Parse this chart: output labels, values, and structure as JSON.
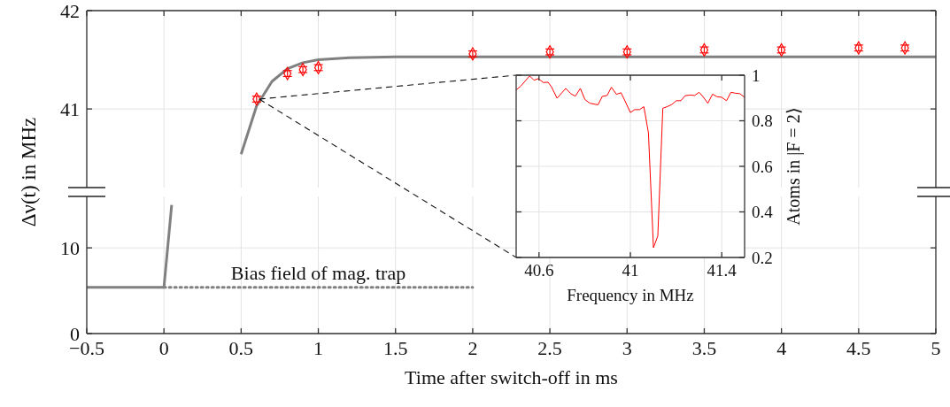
{
  "chart_data": [
    {
      "type": "line",
      "ylabel": "Δν(t) in MHz",
      "xlim": [
        -0.5,
        5
      ],
      "xticks": [
        -0.5,
        0,
        0.5,
        1,
        1.5,
        2,
        2.5,
        3,
        3.5,
        4,
        4.5,
        5
      ],
      "ylim": [
        40.2,
        42
      ],
      "yticks": [
        41,
        42
      ],
      "grid": true,
      "tick_labels": "y",
      "series": [
        {
          "type": "line",
          "color": "#808080",
          "x": [
            0.5,
            0.6,
            0.7,
            0.8,
            0.9,
            1.0,
            1.2,
            1.5,
            5
          ],
          "values": [
            40.54,
            41.03,
            41.28,
            41.41,
            41.47,
            41.5,
            41.52,
            41.53,
            41.53
          ]
        },
        {
          "type": "scatter",
          "color": "#ff0000",
          "marker": "diamond",
          "x": [
            0.6,
            0.8,
            0.9,
            1.0,
            2.0,
            2.5,
            3.0,
            3.5,
            4.0,
            4.5,
            4.8
          ],
          "values": [
            41.1,
            41.36,
            41.4,
            41.42,
            41.56,
            41.58,
            41.58,
            41.6,
            41.6,
            41.62,
            41.62
          ],
          "errors": [
            0.03,
            0.03,
            0.03,
            0.03,
            0.03,
            0.03,
            0.03,
            0.03,
            0.03,
            0.03,
            0.03
          ]
        }
      ]
    },
    {
      "type": "line",
      "xlabel": "Time after switch-off in ms",
      "xlim": [
        -0.5,
        5
      ],
      "xticks": [
        {
          "value": -0.5,
          "label": "−0.5"
        },
        0,
        0.5,
        1,
        1.5,
        2,
        2.5,
        3,
        3.5,
        4,
        4.5,
        5
      ],
      "ylim": [
        0,
        16
      ],
      "yticks": [
        0,
        10
      ],
      "grid": true,
      "annotations": [
        {
          "text": "Bias field of mag. trap",
          "x": 1,
          "y": 5.4
        }
      ],
      "series": [
        {
          "type": "line",
          "color": "#808080",
          "x": [
            -0.5,
            0,
            0.05
          ],
          "values": [
            5.4,
            5.4,
            15
          ]
        },
        {
          "type": "line",
          "color": "#808080",
          "line_style": "dotted",
          "x": [
            0,
            2
          ],
          "values": [
            5.4,
            5.4
          ]
        }
      ]
    },
    {
      "type": "line",
      "xlabel": "Frequency in MHz",
      "ylabel": "Atoms in |F = 2⟩",
      "xlim": [
        40.5,
        41.5
      ],
      "xticks": [
        40.6,
        41,
        41.4
      ],
      "ylim": [
        0.2,
        1
      ],
      "yticks": [
        0.2,
        0.4,
        0.6,
        0.8,
        1
      ],
      "grid": true,
      "series": [
        {
          "type": "line",
          "color": "#ff0000",
          "x": [
            40.5,
            40.52,
            40.559,
            40.578,
            40.597,
            40.619,
            40.64,
            40.655,
            40.679,
            40.717,
            40.739,
            40.759,
            40.781,
            40.801,
            40.823,
            40.858,
            40.877,
            40.898,
            40.917,
            40.939,
            40.959,
            40.978,
            41.0,
            41.019,
            41.04,
            41.059,
            41.079,
            41.101,
            41.12,
            41.142,
            41.161,
            41.181,
            41.201,
            41.221,
            41.24,
            41.262,
            41.281,
            41.301,
            41.32,
            41.339,
            41.36,
            41.378,
            41.4,
            41.421,
            41.44,
            41.459,
            41.479,
            41.5
          ],
          "values": [
            0.935,
            0.952,
            0.997,
            0.978,
            0.985,
            0.968,
            0.969,
            0.948,
            0.899,
            0.942,
            0.919,
            0.908,
            0.942,
            0.893,
            0.877,
            0.87,
            0.907,
            0.911,
            0.947,
            0.916,
            0.923,
            0.884,
            0.836,
            0.849,
            0.849,
            0.862,
            0.748,
            0.243,
            0.294,
            0.855,
            0.862,
            0.871,
            0.888,
            0.888,
            0.91,
            0.913,
            0.911,
            0.925,
            0.903,
            0.877,
            0.917,
            0.906,
            0.903,
            0.888,
            0.925,
            0.921,
            0.919,
            0.903
          ]
        }
      ]
    }
  ]
}
